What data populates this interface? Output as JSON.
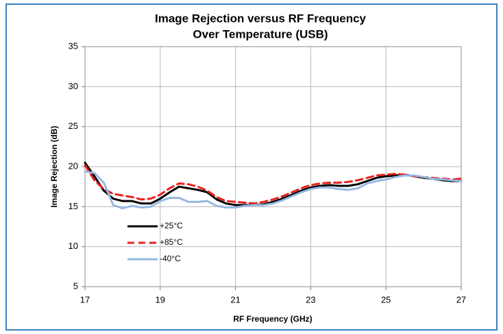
{
  "chart_data": {
    "type": "line",
    "title": "Image Rejection versus RF Frequency",
    "subtitle": "Over Temperature (USB)",
    "x_label": "RF Frequency (GHz)",
    "y_label": "Image Rejection (dB)",
    "x": [
      17,
      17.25,
      17.5,
      17.75,
      18,
      18.25,
      18.5,
      18.75,
      19,
      19.25,
      19.5,
      19.75,
      20,
      20.25,
      20.5,
      20.75,
      21,
      21.25,
      21.5,
      21.75,
      22,
      22.25,
      22.5,
      22.75,
      23,
      23.25,
      23.5,
      23.75,
      24,
      24.25,
      24.5,
      24.75,
      25,
      25.25,
      25.5,
      25.75,
      26,
      26.25,
      26.5,
      26.75,
      27
    ],
    "series": [
      {
        "name": "+25°C",
        "color": "#000000",
        "dash": "solid",
        "values": [
          20.5,
          18.8,
          17,
          16,
          15.7,
          15.7,
          15.4,
          15.4,
          16,
          16.8,
          17.5,
          17.3,
          17.1,
          16.8,
          15.9,
          15.4,
          15.2,
          15.2,
          15.2,
          15.3,
          15.6,
          16,
          16.5,
          17,
          17.4,
          17.6,
          17.7,
          17.6,
          17.6,
          17.8,
          18.2,
          18.6,
          18.8,
          18.9,
          19,
          18.8,
          18.6,
          18.5,
          18.3,
          18.2,
          18.2
        ]
      },
      {
        "name": "+85°C",
        "color": "#e8201c",
        "dash": "dashed",
        "values": [
          20.2,
          18.3,
          17.2,
          16.6,
          16.4,
          16.2,
          15.9,
          16,
          16.5,
          17.3,
          17.9,
          17.8,
          17.5,
          17,
          16.2,
          15.7,
          15.6,
          15.5,
          15.4,
          15.6,
          15.9,
          16.3,
          16.8,
          17.3,
          17.7,
          17.9,
          18,
          18,
          18.1,
          18.3,
          18.6,
          18.9,
          19,
          19.1,
          19,
          18.8,
          18.7,
          18.6,
          18.5,
          18.4,
          18.5
        ]
      },
      {
        "name": "-40°C",
        "color": "#95b8e3",
        "dash": "solid",
        "values": [
          19.4,
          19.2,
          18,
          15.2,
          14.8,
          15.1,
          14.9,
          15,
          15.7,
          16.1,
          16.1,
          15.6,
          15.6,
          15.7,
          15.1,
          14.9,
          14.9,
          15.1,
          15.2,
          15.2,
          15.4,
          15.8,
          16.3,
          16.8,
          17.2,
          17.4,
          17.4,
          17.2,
          17.1,
          17.3,
          17.9,
          18.2,
          18.4,
          18.7,
          18.9,
          18.9,
          18.7,
          18.5,
          18.4,
          18.3,
          18.2
        ]
      }
    ],
    "xlim": [
      17,
      27
    ],
    "xticks": [
      17,
      19,
      21,
      23,
      25,
      27
    ],
    "ylim": [
      5,
      35
    ],
    "yticks": [
      5,
      10,
      15,
      20,
      25,
      30,
      35
    ],
    "grid": true,
    "legend": "lower left"
  }
}
